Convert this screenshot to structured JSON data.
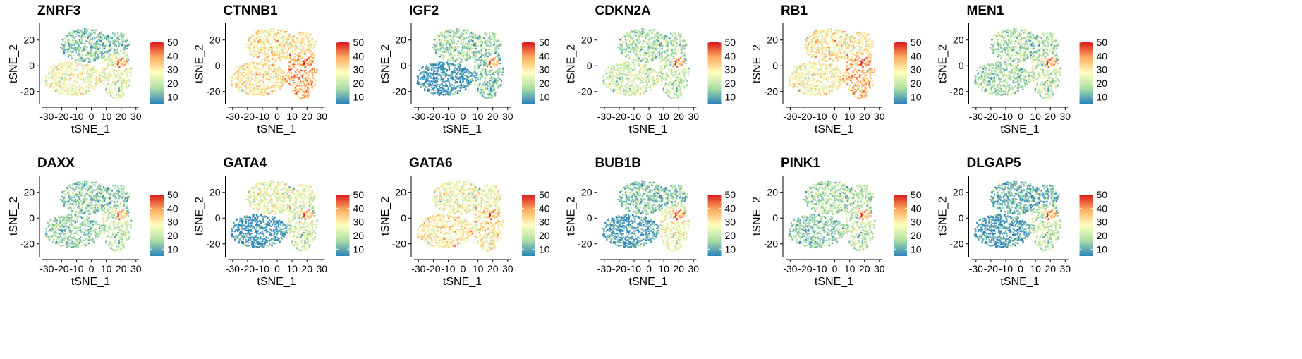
{
  "figure": {
    "panel_count": 12,
    "columns": 6,
    "colorscale": [
      "#2b83ba",
      "#abdda4",
      "#ffffbf",
      "#fdae61",
      "#d7191c"
    ],
    "colorscale_low_color": "#1f78b4",
    "colorscale_high_color": "#ff1a1a"
  },
  "chart_data": [
    {
      "type": "scatter",
      "title": "ZNRF3",
      "xlabel": "tSNE_1",
      "ylabel": "tSNE_2",
      "xlim": [
        -33,
        32
      ],
      "ylim": [
        -30,
        33
      ],
      "xticks": [
        "-30",
        "-20",
        "-10",
        "0",
        "10",
        "20",
        "30"
      ],
      "yticks": [
        "20",
        "0",
        "-20"
      ],
      "color_scale": {
        "min": 5,
        "max": 50,
        "ticks": [
          "50",
          "40",
          "30",
          "20",
          "10"
        ]
      },
      "expression_by_region": {
        "top_lobe": 14,
        "left_bottom": 27,
        "right_cluster": 24,
        "hotspot": 40
      }
    },
    {
      "type": "scatter",
      "title": "CTNNB1",
      "xlabel": "tSNE_1",
      "ylabel": "tSNE_2",
      "xlim": [
        -33,
        32
      ],
      "ylim": [
        -30,
        33
      ],
      "xticks": [
        "-30",
        "-20",
        "-10",
        "0",
        "10",
        "20",
        "30"
      ],
      "yticks": [
        "20",
        "0",
        "-20"
      ],
      "color_scale": {
        "min": 5,
        "max": 50,
        "ticks": [
          "50",
          "40",
          "30",
          "20",
          "10"
        ]
      },
      "expression_by_region": {
        "top_lobe": 30,
        "left_bottom": 31,
        "right_cluster": 37,
        "hotspot": 42
      }
    },
    {
      "type": "scatter",
      "title": "IGF2",
      "xlabel": "tSNE_1",
      "ylabel": "tSNE_2",
      "xlim": [
        -33,
        32
      ],
      "ylim": [
        -30,
        33
      ],
      "xticks": [
        "-30",
        "-20",
        "-10",
        "0",
        "10",
        "20",
        "30"
      ],
      "yticks": [
        "20",
        "0",
        "-20"
      ],
      "color_scale": {
        "min": 5,
        "max": 50,
        "ticks": [
          "50",
          "40",
          "30",
          "20",
          "10"
        ]
      },
      "expression_by_region": {
        "top_lobe": 17,
        "left_bottom": 6,
        "right_cluster": 14,
        "hotspot": 38
      }
    },
    {
      "type": "scatter",
      "title": "CDKN2A",
      "xlabel": "tSNE_1",
      "ylabel": "tSNE_2",
      "xlim": [
        -33,
        32
      ],
      "ylim": [
        -30,
        33
      ],
      "xticks": [
        "-30",
        "-20",
        "-10",
        "0",
        "10",
        "20",
        "30"
      ],
      "yticks": [
        "20",
        "0",
        "-20"
      ],
      "color_scale": {
        "min": 5,
        "max": 50,
        "ticks": [
          "50",
          "40",
          "30",
          "20",
          "10"
        ]
      },
      "expression_by_region": {
        "top_lobe": 18,
        "left_bottom": 22,
        "right_cluster": 20,
        "hotspot": 40
      }
    },
    {
      "type": "scatter",
      "title": "RB1",
      "xlabel": "tSNE_1",
      "ylabel": "tSNE_2",
      "xlim": [
        -33,
        32
      ],
      "ylim": [
        -30,
        33
      ],
      "xticks": [
        "-30",
        "-20",
        "-10",
        "0",
        "10",
        "20",
        "30"
      ],
      "yticks": [
        "20",
        "0",
        "-20"
      ],
      "color_scale": {
        "min": 5,
        "max": 50,
        "ticks": [
          "50",
          "40",
          "30",
          "20",
          "10"
        ]
      },
      "expression_by_region": {
        "top_lobe": 30,
        "left_bottom": 28,
        "right_cluster": 36,
        "hotspot": 43
      }
    },
    {
      "type": "scatter",
      "title": "MEN1",
      "xlabel": "tSNE_1",
      "ylabel": "tSNE_2",
      "xlim": [
        -33,
        32
      ],
      "ylim": [
        -30,
        33
      ],
      "xticks": [
        "-30",
        "-20",
        "-10",
        "0",
        "10",
        "20",
        "30"
      ],
      "yticks": [
        "20",
        "0",
        "-20"
      ],
      "color_scale": {
        "min": 5,
        "max": 50,
        "ticks": [
          "50",
          "40",
          "30",
          "20",
          "10"
        ]
      },
      "expression_by_region": {
        "top_lobe": 18,
        "left_bottom": 17,
        "right_cluster": 20,
        "hotspot": 40
      }
    },
    {
      "type": "scatter",
      "title": "DAXX",
      "xlabel": "tSNE_1",
      "ylabel": "tSNE_2",
      "xlim": [
        -33,
        32
      ],
      "ylim": [
        -30,
        33
      ],
      "xticks": [
        "-30",
        "-20",
        "-10",
        "0",
        "10",
        "20",
        "30"
      ],
      "yticks": [
        "20",
        "0",
        "-20"
      ],
      "color_scale": {
        "min": 5,
        "max": 50,
        "ticks": [
          "50",
          "40",
          "30",
          "20",
          "10"
        ]
      },
      "expression_by_region": {
        "top_lobe": 15,
        "left_bottom": 16,
        "right_cluster": 20,
        "hotspot": 38
      }
    },
    {
      "type": "scatter",
      "title": "GATA4",
      "xlabel": "tSNE_1",
      "ylabel": "tSNE_2",
      "xlim": [
        -33,
        32
      ],
      "ylim": [
        -30,
        33
      ],
      "xticks": [
        "-30",
        "-20",
        "-10",
        "0",
        "10",
        "20",
        "30"
      ],
      "yticks": [
        "20",
        "0",
        "-20"
      ],
      "color_scale": {
        "min": 5,
        "max": 50,
        "ticks": [
          "50",
          "40",
          "30",
          "20",
          "10"
        ]
      },
      "expression_by_region": {
        "top_lobe": 25,
        "left_bottom": 6,
        "right_cluster": 22,
        "hotspot": 38
      }
    },
    {
      "type": "scatter",
      "title": "GATA6",
      "xlabel": "tSNE_1",
      "ylabel": "tSNE_2",
      "xlim": [
        -33,
        32
      ],
      "ylim": [
        -30,
        33
      ],
      "xticks": [
        "-30",
        "-20",
        "-10",
        "0",
        "10",
        "20",
        "30"
      ],
      "yticks": [
        "20",
        "0",
        "-20"
      ],
      "color_scale": {
        "min": 5,
        "max": 50,
        "ticks": [
          "50",
          "40",
          "30",
          "20",
          "10"
        ]
      },
      "expression_by_region": {
        "top_lobe": 26,
        "left_bottom": 30,
        "right_cluster": 30,
        "hotspot": 39
      }
    },
    {
      "type": "scatter",
      "title": "BUB1B",
      "xlabel": "tSNE_1",
      "ylabel": "tSNE_2",
      "xlim": [
        -33,
        32
      ],
      "ylim": [
        -30,
        33
      ],
      "xticks": [
        "-30",
        "-20",
        "-10",
        "0",
        "10",
        "20",
        "30"
      ],
      "yticks": [
        "20",
        "0",
        "-20"
      ],
      "color_scale": {
        "min": 5,
        "max": 50,
        "ticks": [
          "50",
          "40",
          "30",
          "20",
          "10"
        ]
      },
      "expression_by_region": {
        "top_lobe": 14,
        "left_bottom": 8,
        "right_cluster": 26,
        "hotspot": 42
      }
    },
    {
      "type": "scatter",
      "title": "PINK1",
      "xlabel": "tSNE_1",
      "ylabel": "tSNE_2",
      "xlim": [
        -33,
        32
      ],
      "ylim": [
        -30,
        33
      ],
      "xticks": [
        "-30",
        "-20",
        "-10",
        "0",
        "10",
        "20",
        "30"
      ],
      "yticks": [
        "20",
        "0",
        "-20"
      ],
      "color_scale": {
        "min": 5,
        "max": 50,
        "ticks": [
          "50",
          "40",
          "30",
          "20",
          "10"
        ]
      },
      "expression_by_region": {
        "top_lobe": 18,
        "left_bottom": 15,
        "right_cluster": 20,
        "hotspot": 38
      }
    },
    {
      "type": "scatter",
      "title": "DLGAP5",
      "xlabel": "tSNE_1",
      "ylabel": "tSNE_2",
      "xlim": [
        -33,
        32
      ],
      "ylim": [
        -30,
        33
      ],
      "xticks": [
        "-30",
        "-20",
        "-10",
        "0",
        "10",
        "20",
        "30"
      ],
      "yticks": [
        "20",
        "0",
        "-20"
      ],
      "color_scale": {
        "min": 5,
        "max": 50,
        "ticks": [
          "50",
          "40",
          "30",
          "20",
          "10"
        ]
      },
      "expression_by_region": {
        "top_lobe": 11,
        "left_bottom": 7,
        "right_cluster": 20,
        "hotspot": 40
      }
    }
  ]
}
